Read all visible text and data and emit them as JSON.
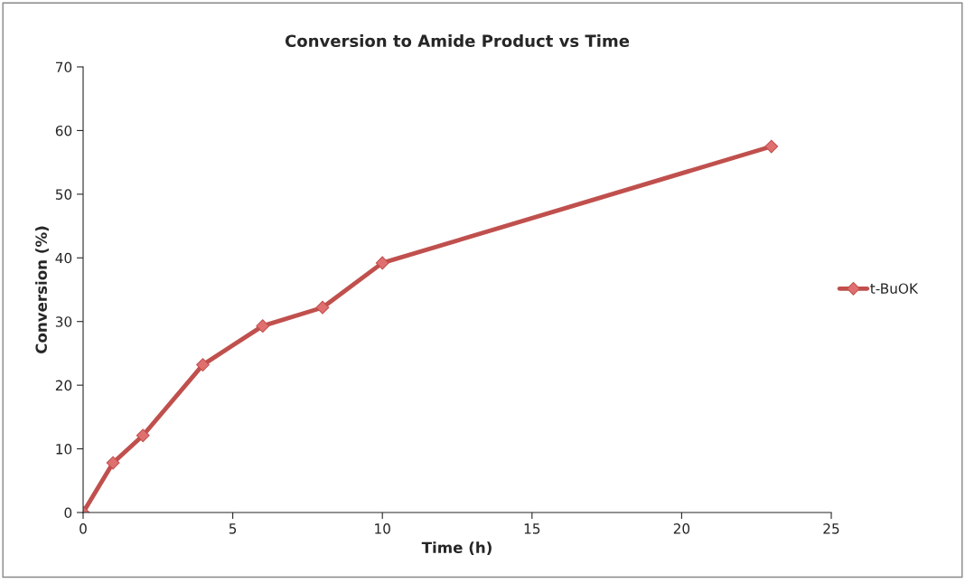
{
  "chart_data": {
    "type": "line",
    "title": "Conversion to Amide Product vs Time",
    "xlabel": "Time (h)",
    "ylabel": "Conversion (%)",
    "x": [
      0,
      1,
      2,
      4,
      6,
      8,
      10,
      23
    ],
    "series": [
      {
        "name": "t-BuOK",
        "color": "#c0504d",
        "values": [
          0,
          7.8,
          12.1,
          23.2,
          29.3,
          32.2,
          39.2,
          57.5
        ]
      }
    ],
    "xlim": [
      0,
      25
    ],
    "xticks": [
      0,
      5,
      10,
      15,
      20,
      25
    ],
    "ylim": [
      0,
      70
    ],
    "yticks": [
      0,
      10,
      20,
      30,
      40,
      50,
      60,
      70
    ],
    "grid": false,
    "legend": "right",
    "marker": "diamond",
    "line_style": "solid"
  }
}
